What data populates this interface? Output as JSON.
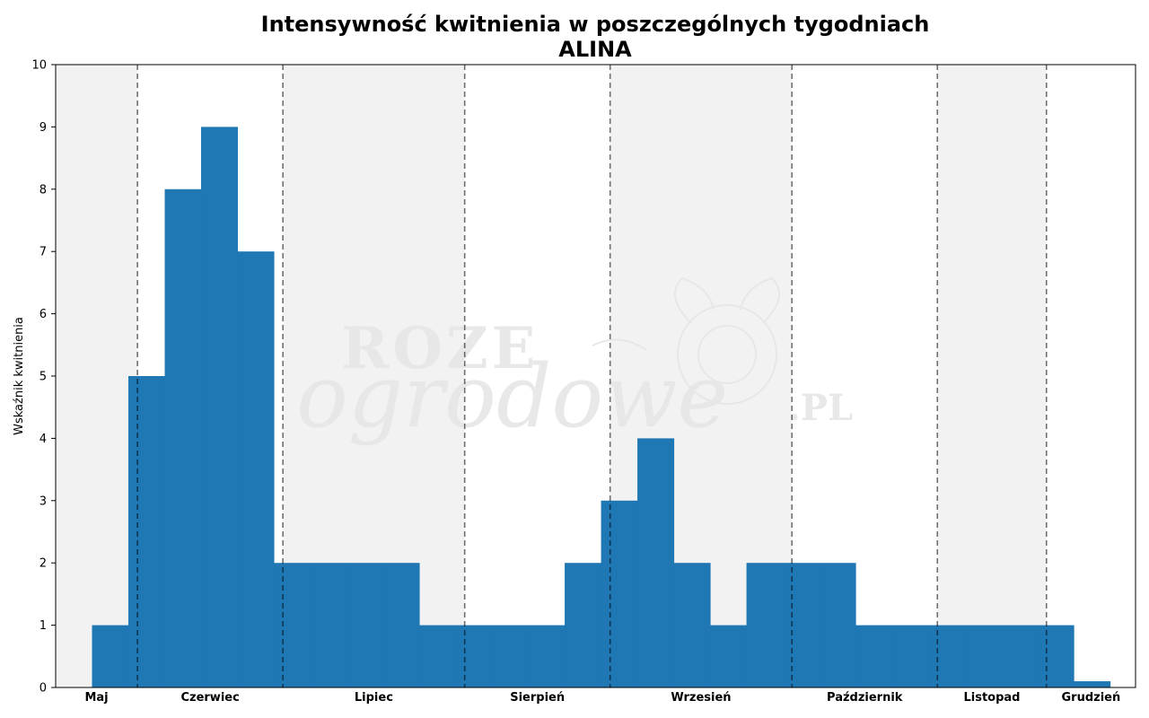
{
  "chart_data": {
    "type": "bar",
    "title": "Intensywność kwitnienia w poszczególnych tygodniach",
    "subtitle": "ALINA",
    "ylabel": "Wskaźnik kwitnienia",
    "xlabel": "",
    "ylim": [
      0,
      10
    ],
    "yticks": [
      "0",
      "1",
      "2",
      "3",
      "4",
      "5",
      "6",
      "7",
      "8",
      "9",
      "10"
    ],
    "week_range": [
      0,
      29.7
    ],
    "values": [
      0,
      1,
      5,
      8,
      9,
      7,
      2,
      2,
      2,
      2,
      1,
      1,
      1,
      1,
      2,
      3,
      4,
      2,
      1,
      2,
      2,
      2,
      1,
      1,
      1,
      1,
      1,
      1,
      0.1
    ],
    "month_boundaries": [
      2.25,
      6.25,
      11.25,
      15.25,
      20.25,
      24.25,
      27.25
    ],
    "months": [
      "Maj",
      "Czerwiec",
      "Lipiec",
      "Sierpień",
      "Wrzesień",
      "Październik",
      "Listopad",
      "Grudzień"
    ],
    "shaded_months": [
      true,
      false,
      true,
      false,
      true,
      false,
      true,
      false
    ],
    "bar_color": "#1f77b4",
    "shade_color": "#f2f2f2",
    "grid": false,
    "legend": "none"
  },
  "watermark": {
    "line1": "ROZE",
    "line2": "ogrodowe",
    "line3": ".PL"
  }
}
